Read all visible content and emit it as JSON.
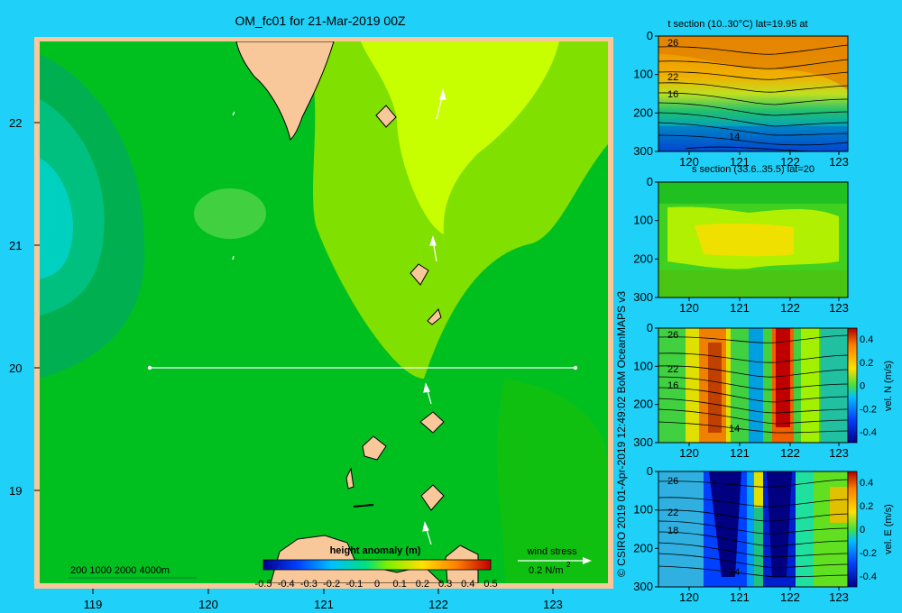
{
  "map": {
    "title": "OM_fc01 for 21-Mar-2019 00Z",
    "lat_labels": [
      "22",
      "21",
      "20",
      "19"
    ],
    "lon_labels": [
      "119",
      "120",
      "121",
      "122",
      "123"
    ],
    "depth_legend": "200  1000  2000  4000m",
    "colorbar_title": "height anomaly  (m)",
    "colorbar_ticks": [
      "-0.5",
      "-0.4",
      "-0.3",
      "-0.2",
      "-0.1",
      "0",
      "0.1",
      "0.2",
      "0.3",
      "0.4",
      "0.5"
    ],
    "wind_label": "wind stress",
    "wind_scale": "0.2 N/m",
    "wind_scale_sup": "2"
  },
  "panels": {
    "p1_title": "t section (10..30°C) lat=19.95 at",
    "p2_title": "s section (33.6..35.5) lat=20",
    "y_ticks": [
      "0",
      "100",
      "200",
      "300"
    ],
    "x_ticks": [
      "120",
      "121",
      "122",
      "123"
    ],
    "contours_p1": [
      "26",
      "22",
      "16",
      "14"
    ],
    "contours_p3": [
      "26",
      "22",
      "16",
      "14"
    ],
    "contours_p4": [
      "26",
      "22",
      "18",
      "14"
    ],
    "vel_ticks": [
      "0.4",
      "0.2",
      "0",
      "-0.2",
      "-0.4"
    ],
    "vel_n_label": "vel. N  (m/s)",
    "vel_e_label": "vel. E  (m/s)"
  },
  "credit": "© CSIRO 2019   01-Apr-2019 12:49:02 BoM OceanMAPS v3",
  "colors": {
    "background": "#1fd0f8",
    "land": "#f9c89a",
    "ssh_base": "#00c020",
    "ssh_low": "#00b050",
    "ssh_high": "#c8ff00"
  }
}
